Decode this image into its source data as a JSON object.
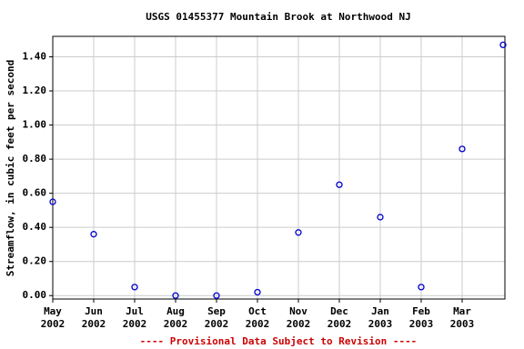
{
  "chart_data": {
    "type": "scatter",
    "title": "USGS 01455377 Mountain Brook at Northwood NJ",
    "ylabel": "Streamflow, in cubic feet per second",
    "footnote": "---- Provisional Data Subject to Revision ----",
    "x": [
      "2002-05",
      "2002-06",
      "2002-07",
      "2002-08",
      "2002-09",
      "2002-10",
      "2002-11",
      "2002-12",
      "2003-01",
      "2003-02",
      "2003-03",
      "2003-04"
    ],
    "series": [
      {
        "color": "#0000cc",
        "values": [
          0.55,
          0.36,
          0.05,
          0.0,
          0.0,
          0.02,
          0.37,
          0.65,
          0.46,
          0.05,
          0.86,
          1.47
        ]
      }
    ],
    "xlim": [
      "2002-05",
      "2003-04"
    ],
    "xticks": [
      {
        "value": "2002-05",
        "label": [
          "May",
          "2002"
        ]
      },
      {
        "value": "2002-06",
        "label": [
          "Jun",
          "2002"
        ]
      },
      {
        "value": "2002-07",
        "label": [
          "Jul",
          "2002"
        ]
      },
      {
        "value": "2002-08",
        "label": [
          "Aug",
          "2002"
        ]
      },
      {
        "value": "2002-09",
        "label": [
          "Sep",
          "2002"
        ]
      },
      {
        "value": "2002-10",
        "label": [
          "Oct",
          "2002"
        ]
      },
      {
        "value": "2002-11",
        "label": [
          "Nov",
          "2002"
        ]
      },
      {
        "value": "2002-12",
        "label": [
          "Dec",
          "2002"
        ]
      },
      {
        "value": "2003-01",
        "label": [
          "Jan",
          "2003"
        ]
      },
      {
        "value": "2003-02",
        "label": [
          "Feb",
          "2003"
        ]
      },
      {
        "value": "2003-03",
        "label": [
          "Mar",
          "2003"
        ]
      }
    ],
    "ylim": [
      -0.02,
      1.52
    ],
    "yticks": [
      {
        "value": 0,
        "label": "0.00"
      },
      {
        "value": 0.2,
        "label": "0.20"
      },
      {
        "value": 0.4,
        "label": "0.40"
      },
      {
        "value": 0.6,
        "label": "0.60"
      },
      {
        "value": 0.8,
        "label": "0.80"
      },
      {
        "value": 1.0,
        "label": "1.00"
      },
      {
        "value": 1.2,
        "label": "1.20"
      },
      {
        "value": 1.4,
        "label": "1.40"
      }
    ],
    "grid": true
  }
}
